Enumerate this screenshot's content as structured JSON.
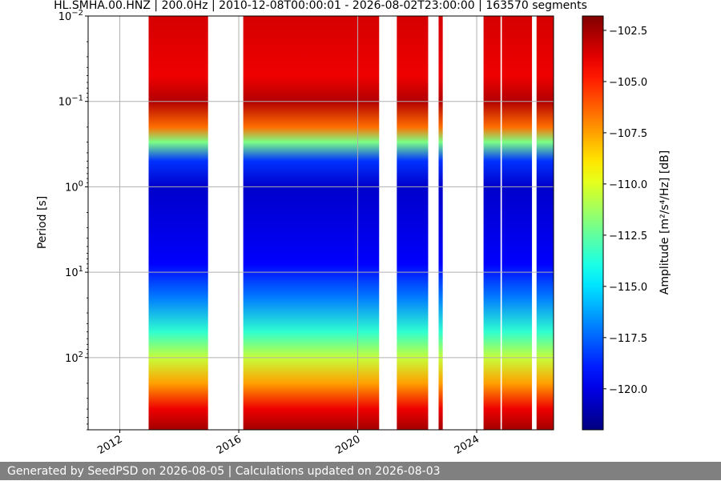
{
  "chart_data": {
    "type": "heatmap",
    "title": "HL.SMHA.00.HNZ | 200.0Hz | 2010-12-08T00:00:01 - 2026-08-02T23:00:00 | 163570 segments",
    "ylabel": "Period [s]",
    "y_scale": "log",
    "y_inverted": true,
    "ylim": [
      0.01,
      700
    ],
    "y_ticks": [
      {
        "value": 0.01,
        "base": "10",
        "exp": "−2"
      },
      {
        "value": 0.1,
        "base": "10",
        "exp": "−1"
      },
      {
        "value": 1,
        "base": "10",
        "exp": "0"
      },
      {
        "value": 10,
        "base": "10",
        "exp": "1"
      },
      {
        "value": 100,
        "base": "10",
        "exp": "2"
      }
    ],
    "x_type": "date",
    "xlim": [
      "2010-12-08",
      "2026-08-02"
    ],
    "x_ticks": [
      "2012",
      "2016",
      "2020",
      "2024"
    ],
    "grid": true,
    "colorbar": {
      "label": "Amplitude [m²/s⁴/Hz] [dB]",
      "min": -122,
      "max": -101.8,
      "ticks": [
        "−102.5",
        "−105.0",
        "−107.5",
        "−110.0",
        "−112.5",
        "−115.0",
        "−117.5",
        "−120.0"
      ],
      "tick_values": [
        -102.5,
        -105.0,
        -107.5,
        -110.0,
        -112.5,
        -115.0,
        -117.5,
        -120.0
      ],
      "colormap": "jet"
    },
    "data_segments": [
      {
        "start": "2012-12-20",
        "end": "2014-12-20"
      },
      {
        "start": "2016-02-25",
        "end": "2020-09-20"
      },
      {
        "start": "2021-04-25",
        "end": "2022-05-15"
      },
      {
        "start": "2022-09-20",
        "end": "2022-11-10"
      },
      {
        "start": "2024-03-25",
        "end": "2024-10-20"
      },
      {
        "start": "2024-11-05",
        "end": "2025-11-10"
      },
      {
        "start": "2026-01-05",
        "end": "2026-08-02"
      }
    ],
    "amplitude_profile": [
      {
        "period": 0.01,
        "db": -103.5
      },
      {
        "period": 0.05,
        "db": -104
      },
      {
        "period": 0.1,
        "db": -102.8
      },
      {
        "period": 0.2,
        "db": -106.5
      },
      {
        "period": 0.3,
        "db": -112
      },
      {
        "period": 0.5,
        "db": -118.5
      },
      {
        "period": 1,
        "db": -120.5
      },
      {
        "period": 3,
        "db": -120
      },
      {
        "period": 8,
        "db": -119.5
      },
      {
        "period": 20,
        "db": -117
      },
      {
        "period": 50,
        "db": -113.5
      },
      {
        "period": 100,
        "db": -110.5
      },
      {
        "period": 200,
        "db": -107.5
      },
      {
        "period": 400,
        "db": -104
      },
      {
        "period": 700,
        "db": -102.5
      }
    ]
  },
  "footer": {
    "text": "Generated by SeedPSD on 2026-08-05 | Calculations updated on 2026-08-03"
  }
}
